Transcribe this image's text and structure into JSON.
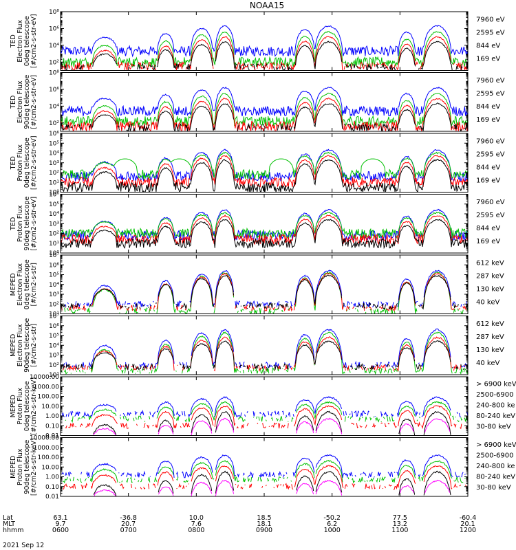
{
  "chart_data": {
    "type": "line",
    "title": "NOAA15",
    "date": "2021 Sep 12",
    "x_rows": [
      {
        "label": "Lat",
        "values": [
          "63.1",
          "-36.8",
          "10.0",
          "18.5",
          "-50.2",
          "77.5",
          "-60.4"
        ]
      },
      {
        "label": "MLT",
        "values": [
          "9.7",
          "20.7",
          "7.6",
          "18.1",
          "6.2",
          "13.2",
          "20.1"
        ]
      },
      {
        "label": "hhmm",
        "values": [
          "0600",
          "0700",
          "0800",
          "0900",
          "1000",
          "1100",
          "1200"
        ]
      }
    ],
    "x_hours": [
      6,
      7,
      8,
      9,
      10,
      11,
      12
    ],
    "xlim": [
      6,
      12
    ],
    "panels": [
      {
        "ylabel": [
          "TED",
          "Electron Flux",
          "0deg telescope",
          "[#/cm2-s-str-eV]"
        ],
        "yscale": "log",
        "ylim_exp": [
          1,
          8
        ],
        "yticks": [
          {
            "v": 2,
            "t": "10²"
          },
          {
            "v": 4,
            "t": "10⁴"
          },
          {
            "v": 6,
            "t": "10⁶"
          },
          {
            "v": 8,
            "t": "10⁸"
          }
        ],
        "channels": [
          {
            "label": "7960 eV",
            "color": "#000000"
          },
          {
            "label": "2595 eV",
            "color": "#ff0000"
          },
          {
            "label": "844 eV",
            "color": "#00c000"
          },
          {
            "label": "169 eV",
            "color": "#0000ff"
          }
        ],
        "base": [
          1.2,
          1.4,
          2.0,
          3.3
        ],
        "peak": [
          4.4,
          5.0,
          5.6,
          6.3
        ],
        "noise": 0.6,
        "flat": false,
        "green_bumps": false
      },
      {
        "ylabel": [
          "TED",
          "Electron Flux",
          "90deg telescope",
          "[#/cm2-s-str-eV]"
        ],
        "yscale": "log",
        "ylim_exp": [
          1,
          8
        ],
        "yticks": [
          {
            "v": 2,
            "t": "10²"
          },
          {
            "v": 4,
            "t": "10⁴"
          },
          {
            "v": 6,
            "t": "10⁶"
          },
          {
            "v": 8,
            "t": "10⁸"
          }
        ],
        "channels": [
          {
            "label": "7960 eV",
            "color": "#000000"
          },
          {
            "label": "2595 eV",
            "color": "#ff0000"
          },
          {
            "label": "844 eV",
            "color": "#00c000"
          },
          {
            "label": "169 eV",
            "color": "#0000ff"
          }
        ],
        "base": [
          1.3,
          1.6,
          2.2,
          3.4
        ],
        "peak": [
          4.3,
          4.9,
          5.5,
          6.2
        ],
        "noise": 0.6,
        "flat": false,
        "green_bumps": false
      },
      {
        "ylabel": [
          "TED",
          "Proton Flux",
          "0deg telescope",
          "[#/cm2-s-str-eV]"
        ],
        "yscale": "log",
        "ylim_exp": [
          0,
          6
        ],
        "yticks": [
          {
            "v": 0,
            "t": "10⁰"
          },
          {
            "v": 1,
            "t": "10¹"
          },
          {
            "v": 2,
            "t": "10²"
          },
          {
            "v": 3,
            "t": "10³"
          },
          {
            "v": 4,
            "t": "10⁴"
          },
          {
            "v": 5,
            "t": "10⁵"
          },
          {
            "v": 6,
            "t": "10⁶"
          }
        ],
        "channels": [
          {
            "label": "7960 eV",
            "color": "#000000"
          },
          {
            "label": "2595 eV",
            "color": "#ff0000"
          },
          {
            "label": "844 eV",
            "color": "#00c000"
          },
          {
            "label": "169 eV",
            "color": "#0000ff"
          }
        ],
        "base": [
          0.5,
          1.0,
          1.8,
          1.6
        ],
        "peak": [
          3.3,
          3.7,
          4.0,
          4.3
        ],
        "noise": 0.5,
        "flat": false,
        "green_bumps": true
      },
      {
        "ylabel": [
          "TED",
          "Proton Flux",
          "90deg telescope",
          "[#/cm2-s-str-eV]"
        ],
        "yscale": "log",
        "ylim_exp": [
          0,
          6
        ],
        "yticks": [
          {
            "v": 0,
            "t": "10⁰"
          },
          {
            "v": 1,
            "t": "10¹"
          },
          {
            "v": 2,
            "t": "10²"
          },
          {
            "v": 3,
            "t": "10³"
          },
          {
            "v": 4,
            "t": "10⁴"
          },
          {
            "v": 5,
            "t": "10⁵"
          },
          {
            "v": 6,
            "t": "10⁶"
          }
        ],
        "channels": [
          {
            "label": "7960 eV",
            "color": "#000000"
          },
          {
            "label": "2595 eV",
            "color": "#ff0000"
          },
          {
            "label": "844 eV",
            "color": "#00c000"
          },
          {
            "label": "169 eV",
            "color": "#0000ff"
          }
        ],
        "base": [
          1.0,
          1.4,
          2.0,
          1.8
        ],
        "peak": [
          3.4,
          3.8,
          4.1,
          4.4
        ],
        "noise": 0.5,
        "flat": false,
        "green_bumps": false
      },
      {
        "ylabel": [
          "MEPED",
          "Electron Flux",
          "0deg telescope",
          "[#/cm2-s-str]"
        ],
        "yscale": "log",
        "ylim_exp": [
          1,
          7
        ],
        "yticks": [
          {
            "v": 1,
            "t": "10¹"
          },
          {
            "v": 2,
            "t": "10²"
          },
          {
            "v": 3,
            "t": "10³"
          },
          {
            "v": 4,
            "t": "10⁴"
          },
          {
            "v": 5,
            "t": "10⁵"
          },
          {
            "v": 6,
            "t": "10⁶"
          },
          {
            "v": 7,
            "t": "10⁷"
          }
        ],
        "channels": [
          {
            "label": "612 keV",
            "color": "#000000"
          },
          {
            "label": "287 keV",
            "color": "#ff0000"
          },
          {
            "label": "130 keV",
            "color": "#00c000"
          },
          {
            "label": "40 keV",
            "color": "#0000ff"
          }
        ],
        "base": [
          1.8,
          1.6,
          1.3,
          2.0
        ],
        "peak": [
          4.9,
          5.1,
          5.2,
          5.4
        ],
        "noise": 0.3,
        "flat": true,
        "green_bumps": false
      },
      {
        "ylabel": [
          "MEPED",
          "Electron Flux",
          "90deg telescope",
          "[#/cm2-s-str]"
        ],
        "yscale": "log",
        "ylim_exp": [
          1,
          7
        ],
        "yticks": [
          {
            "v": 1,
            "t": "10¹"
          },
          {
            "v": 2,
            "t": "10²"
          },
          {
            "v": 3,
            "t": "10³"
          },
          {
            "v": 4,
            "t": "10⁴"
          },
          {
            "v": 5,
            "t": "10⁵"
          },
          {
            "v": 6,
            "t": "10⁶"
          },
          {
            "v": 7,
            "t": "10⁷"
          }
        ],
        "channels": [
          {
            "label": "612 keV",
            "color": "#000000"
          },
          {
            "label": "287 keV",
            "color": "#ff0000"
          },
          {
            "label": "130 keV",
            "color": "#00c000"
          },
          {
            "label": "40 keV",
            "color": "#0000ff"
          }
        ],
        "base": [
          1.8,
          1.7,
          1.4,
          2.0
        ],
        "peak": [
          4.4,
          4.8,
          5.3,
          5.6
        ],
        "noise": 0.3,
        "flat": true,
        "green_bumps": false
      },
      {
        "ylabel": [
          "MEPED",
          "Proton Flux",
          "0deg telescope",
          "[#/cm2-s-str-keV]"
        ],
        "yscale": "log",
        "ylim_exp": [
          -2,
          4
        ],
        "yticks": [
          {
            "v": -2,
            "t": "0.01"
          },
          {
            "v": -1,
            "t": "0.10"
          },
          {
            "v": 0,
            "t": "1.00"
          },
          {
            "v": 1,
            "t": "10.00"
          },
          {
            "v": 2,
            "t": "100.00"
          },
          {
            "v": 3,
            "t": "1000.00"
          },
          {
            "v": 4,
            "t": "10000.00"
          }
        ],
        "channels": [
          {
            "label": "> 6900 keV",
            "color": "#ff00ff"
          },
          {
            "label": "2500-6900",
            "color": "#000000"
          },
          {
            "label": "240-800 ke",
            "color": "#ff0000"
          },
          {
            "label": "80-240 keV",
            "color": "#00c000"
          },
          {
            "label": "30-80 keV",
            "color": "#0000ff"
          }
        ],
        "base": [
          -2.5,
          -2.5,
          -1.0,
          -0.3,
          0.2
        ],
        "peak": [
          -0.3,
          0.4,
          1.0,
          1.4,
          1.9
        ],
        "noise": 0.3,
        "flat": true,
        "green_bumps": false
      },
      {
        "ylabel": [
          "MEPED",
          "Proton Flux",
          "90deg telescope",
          "[#/cm2-s-str-keV]"
        ],
        "yscale": "log",
        "ylim_exp": [
          -2,
          4
        ],
        "yticks": [
          {
            "v": -2,
            "t": "0.01"
          },
          {
            "v": -1,
            "t": "0.10"
          },
          {
            "v": 0,
            "t": "1.00"
          },
          {
            "v": 1,
            "t": "10.00"
          },
          {
            "v": 2,
            "t": "100.00"
          },
          {
            "v": 3,
            "t": "1000.00"
          },
          {
            "v": 4,
            "t": "10000.00"
          }
        ],
        "channels": [
          {
            "label": "> 6900 keV",
            "color": "#ff00ff"
          },
          {
            "label": "2500-6900",
            "color": "#000000"
          },
          {
            "label": "240-800 ke",
            "color": "#ff0000"
          },
          {
            "label": "80-240 keV",
            "color": "#00c000"
          },
          {
            "label": "30-80 keV",
            "color": "#0000ff"
          }
        ],
        "base": [
          -2.5,
          -2.5,
          -1.0,
          -0.3,
          0.2
        ],
        "peak": [
          -0.4,
          0.5,
          1.1,
          1.6,
          2.2
        ],
        "noise": 0.3,
        "flat": true,
        "green_bumps": false
      }
    ],
    "passes": [
      {
        "center": 6.65,
        "width": 0.18,
        "strength": 0.55
      },
      {
        "center": 7.55,
        "width": 0.12,
        "strength": 0.7
      },
      {
        "center": 8.08,
        "width": 0.16,
        "strength": 0.9
      },
      {
        "center": 8.42,
        "width": 0.14,
        "strength": 1.0
      },
      {
        "center": 9.6,
        "width": 0.14,
        "strength": 0.85
      },
      {
        "center": 9.95,
        "width": 0.2,
        "strength": 1.0
      },
      {
        "center": 11.1,
        "width": 0.12,
        "strength": 0.75
      },
      {
        "center": 11.55,
        "width": 0.2,
        "strength": 1.0
      }
    ]
  }
}
